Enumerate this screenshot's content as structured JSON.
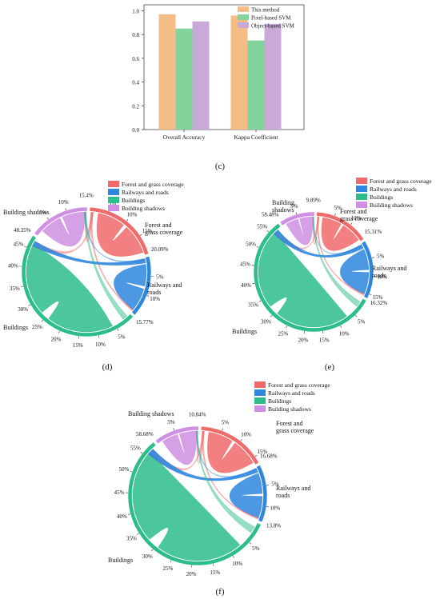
{
  "colors": {
    "this_method": "#f5bc85",
    "pixel_svm": "#82d49a",
    "object_svm": "#c9a9d8",
    "forest": "#f06a6a",
    "rail": "#2e86de",
    "buildings": "#2bbd8a",
    "shadows": "#cf8fe3"
  },
  "panel_labels": [
    "(c)",
    "(d)",
    "(e)",
    "(f)"
  ],
  "chart_data": [
    {
      "type": "bar",
      "categories": [
        "Overall Accuracy",
        "Kappa Coefficient"
      ],
      "series": [
        {
          "name": "This method",
          "values": [
            0.97,
            0.96
          ]
        },
        {
          "name": "Pixel-based SVM",
          "values": [
            0.85,
            0.75
          ]
        },
        {
          "name": "Object-based SVM",
          "values": [
            0.91,
            0.89
          ]
        }
      ],
      "yticks": [
        "0.0",
        "0.2",
        "0.4",
        "0.6",
        "0.8",
        "1.0"
      ],
      "ylim": [
        0,
        1.05
      ],
      "legend": "top-right"
    },
    {
      "type": "chord",
      "panel": "(d)",
      "legend": [
        "Forest and grass coverage",
        "Railways and roads",
        "Buildings",
        "Building shadows"
      ],
      "groups": [
        {
          "name": "Forest and grass coverage",
          "label": "Forest and grass coverage",
          "percent": 20.09,
          "ticks": [
            "5%",
            "10%",
            "15%"
          ],
          "end_label": "20.09%"
        },
        {
          "name": "Railways and roads",
          "label": "Railways and roads",
          "percent": 15.77,
          "ticks": [
            "5%",
            "10%"
          ],
          "end_label": "15.77%"
        },
        {
          "name": "Buildings",
          "label": "Buildings",
          "percent": 48.35,
          "ticks": [
            "5%",
            "10%",
            "15%",
            "20%",
            "25%",
            "30%",
            "35%",
            "40%",
            "45%"
          ],
          "end_label": "48.35%"
        },
        {
          "name": "Building shadows",
          "label": "Building shadows",
          "percent": 15.4,
          "ticks": [
            "5%",
            "10%"
          ],
          "end_label": "15.4%"
        }
      ]
    },
    {
      "type": "chord",
      "panel": "(e)",
      "legend": [
        "Forest and grass coverage",
        "Railways and roads",
        "Buildings",
        "Building shadows"
      ],
      "groups": [
        {
          "name": "Forest and grass coverage",
          "label": "Forest and grass coverage",
          "percent": 15.31,
          "ticks": [
            "5%",
            "10%"
          ],
          "end_label": "15.31%"
        },
        {
          "name": "Railways and roads",
          "label": "Railways and roads",
          "percent": 16.32,
          "ticks": [
            "5%",
            "10%",
            "15%"
          ],
          "end_label": "16.32%"
        },
        {
          "name": "Buildings",
          "label": "Buildings",
          "percent": 58.48,
          "ticks": [
            "5%",
            "10%",
            "15%",
            "20%",
            "25%",
            "30%",
            "35%",
            "40%",
            "45%",
            "50%",
            "55%"
          ],
          "end_label": "58.48%"
        },
        {
          "name": "Building shadows",
          "label": "Building shadows",
          "percent": 9.89,
          "ticks": [
            "5%"
          ],
          "end_label": "9.89%"
        }
      ]
    },
    {
      "type": "chord",
      "panel": "(f)",
      "legend": [
        "Forest and grass coverage",
        "Railways and roads",
        "Buildings",
        "Building shadows"
      ],
      "groups": [
        {
          "name": "Forest and grass coverage",
          "label": "Forest and grass coverage",
          "percent": 16.68,
          "ticks": [
            "5%",
            "10%",
            "15%"
          ],
          "end_label": "16.68%"
        },
        {
          "name": "Railways and roads",
          "label": "Railways and roads",
          "percent": 13.8,
          "ticks": [
            "5%",
            "10%"
          ],
          "end_label": "13.8%"
        },
        {
          "name": "Buildings",
          "label": "Buildings",
          "percent": 58.68,
          "ticks": [
            "5%",
            "10%",
            "15%",
            "20%",
            "25%",
            "30%",
            "35%",
            "40%",
            "45%",
            "50%",
            "55%"
          ],
          "end_label": "58.68%"
        },
        {
          "name": "Building shadows",
          "label": "Building shadows",
          "percent": 10.84,
          "ticks": [
            "5%"
          ],
          "end_label": "10.84%"
        }
      ]
    }
  ]
}
